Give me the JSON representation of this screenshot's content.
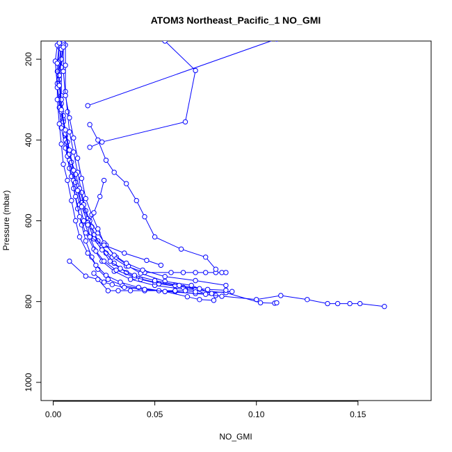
{
  "chart_data": {
    "type": "scatter",
    "title": "ATOM3 Northeast_Pacific_1 NO_GMI",
    "xlabel": "NO_GMI",
    "ylabel": "Pressure (mbar)",
    "xlim": [
      -0.006,
      0.186
    ],
    "ylim": [
      1045,
      155
    ],
    "y_reversed": true,
    "x_ticks": [
      0.0,
      0.05,
      0.1,
      0.15
    ],
    "x_tick_labels": [
      "0.00",
      "0.05",
      "0.10",
      "0.15"
    ],
    "y_ticks": [
      200,
      400,
      600,
      800,
      1000
    ],
    "y_tick_labels": [
      "200",
      "400",
      "600",
      "800",
      "1000"
    ],
    "grid": false,
    "legend": "none",
    "style": {
      "color": "#0000ff",
      "markers": "open-circle",
      "lines": true
    },
    "series": [
      {
        "points": [
          [
            0.004,
            160
          ],
          [
            0.003,
            205
          ],
          [
            0.002,
            260
          ],
          [
            0.003,
            320
          ],
          [
            0.004,
            370
          ],
          [
            0.006,
            420
          ],
          [
            0.008,
            470
          ],
          [
            0.01,
            520
          ],
          [
            0.012,
            570
          ],
          [
            0.014,
            610
          ],
          [
            0.016,
            650
          ],
          [
            0.019,
            690
          ],
          [
            0.022,
            720
          ],
          [
            0.027,
            745
          ],
          [
            0.034,
            760
          ],
          [
            0.045,
            770
          ],
          [
            0.06,
            775
          ],
          [
            0.08,
            785
          ],
          [
            0.1,
            795
          ],
          [
            0.112,
            785
          ],
          [
            0.125,
            795
          ],
          [
            0.135,
            805
          ],
          [
            0.14,
            805
          ],
          [
            0.146,
            805
          ],
          [
            0.151,
            805
          ],
          [
            0.163,
            812
          ]
        ]
      },
      {
        "points": [
          [
            0.005,
            160
          ],
          [
            0.004,
            220
          ],
          [
            0.004,
            290
          ],
          [
            0.005,
            340
          ],
          [
            0.006,
            390
          ],
          [
            0.007,
            440
          ],
          [
            0.009,
            490
          ],
          [
            0.011,
            540
          ],
          [
            0.013,
            590
          ],
          [
            0.016,
            630
          ],
          [
            0.02,
            670
          ],
          [
            0.024,
            700
          ],
          [
            0.03,
            725
          ],
          [
            0.038,
            745
          ],
          [
            0.05,
            760
          ],
          [
            0.065,
            770
          ],
          [
            0.085,
            778
          ],
          [
            0.102,
            803
          ],
          [
            0.109,
            804
          ],
          [
            0.11,
            803
          ]
        ]
      },
      {
        "points": [
          [
            0.003,
            170
          ],
          [
            0.002,
            230
          ],
          [
            0.002,
            300
          ],
          [
            0.003,
            360
          ],
          [
            0.004,
            410
          ],
          [
            0.005,
            460
          ],
          [
            0.007,
            500
          ],
          [
            0.009,
            550
          ],
          [
            0.011,
            600
          ],
          [
            0.013,
            640
          ],
          [
            0.017,
            680
          ],
          [
            0.021,
            710
          ],
          [
            0.026,
            735
          ],
          [
            0.033,
            752
          ],
          [
            0.042,
            765
          ],
          [
            0.055,
            775
          ],
          [
            0.07,
            780
          ],
          [
            0.088,
            775
          ]
        ]
      },
      {
        "points": [
          [
            0.006,
            165
          ],
          [
            0.006,
            215
          ],
          [
            0.006,
            280
          ],
          [
            0.007,
            330
          ],
          [
            0.008,
            380
          ],
          [
            0.01,
            430
          ],
          [
            0.012,
            480
          ],
          [
            0.014,
            530
          ],
          [
            0.016,
            575
          ],
          [
            0.019,
            615
          ],
          [
            0.022,
            650
          ],
          [
            0.026,
            680
          ],
          [
            0.03,
            705
          ],
          [
            0.036,
            728
          ],
          [
            0.043,
            745
          ],
          [
            0.052,
            756
          ],
          [
            0.064,
            765
          ],
          [
            0.076,
            770
          ],
          [
            0.085,
            772
          ]
        ]
      },
      {
        "points": [
          [
            0.005,
            165
          ],
          [
            0.004,
            200
          ],
          [
            0.003,
            250
          ],
          [
            0.004,
            310
          ],
          [
            0.005,
            350
          ],
          [
            0.006,
            400
          ],
          [
            0.008,
            450
          ],
          [
            0.01,
            500
          ],
          [
            0.013,
            560
          ],
          [
            0.015,
            600
          ],
          [
            0.018,
            640
          ],
          [
            0.021,
            675
          ],
          [
            0.025,
            700
          ],
          [
            0.031,
            722
          ],
          [
            0.04,
            740
          ],
          [
            0.05,
            752
          ],
          [
            0.06,
            760
          ],
          [
            0.07,
            770
          ],
          [
            0.075,
            782
          ],
          [
            0.083,
            787
          ]
        ]
      },
      {
        "points": [
          [
            0.004,
            175
          ],
          [
            0.003,
            240
          ],
          [
            0.004,
            300
          ],
          [
            0.005,
            355
          ],
          [
            0.007,
            405
          ],
          [
            0.009,
            455
          ],
          [
            0.011,
            505
          ],
          [
            0.014,
            555
          ],
          [
            0.017,
            595
          ],
          [
            0.02,
            635
          ],
          [
            0.024,
            665
          ],
          [
            0.029,
            690
          ],
          [
            0.036,
            712
          ],
          [
            0.045,
            728
          ],
          [
            0.058,
            728
          ],
          [
            0.064,
            728
          ],
          [
            0.07,
            728
          ],
          [
            0.075,
            728
          ],
          [
            0.08,
            728
          ],
          [
            0.083,
            728
          ],
          [
            0.085,
            728
          ]
        ]
      },
      {
        "points": [
          [
            0.002,
            165
          ],
          [
            0.001,
            205
          ],
          [
            0.002,
            270
          ],
          [
            0.004,
            330
          ],
          [
            0.006,
            385
          ],
          [
            0.008,
            435
          ],
          [
            0.011,
            485
          ],
          [
            0.013,
            520
          ],
          [
            0.015,
            560
          ],
          [
            0.018,
            600
          ],
          [
            0.022,
            630
          ],
          [
            0.026,
            660
          ],
          [
            0.031,
            690
          ],
          [
            0.037,
            712
          ],
          [
            0.043,
            730
          ],
          [
            0.055,
            750
          ],
          [
            0.068,
            760
          ],
          [
            0.078,
            780
          ]
        ]
      },
      {
        "points": [
          [
            0.003,
            160
          ],
          [
            0.002,
            210
          ],
          [
            0.003,
            265
          ],
          [
            0.004,
            325
          ],
          [
            0.006,
            375
          ],
          [
            0.008,
            425
          ],
          [
            0.01,
            475
          ],
          [
            0.012,
            525
          ],
          [
            0.014,
            565
          ],
          [
            0.017,
            605
          ],
          [
            0.02,
            645
          ],
          [
            0.024,
            672
          ],
          [
            0.028,
            700
          ],
          [
            0.033,
            718
          ],
          [
            0.04,
            735
          ],
          [
            0.05,
            748
          ],
          [
            0.062,
            760
          ],
          [
            0.072,
            768
          ]
        ]
      },
      {
        "points": [
          [
            0.005,
            170
          ],
          [
            0.005,
            230
          ],
          [
            0.006,
            290
          ],
          [
            0.008,
            345
          ],
          [
            0.01,
            395
          ],
          [
            0.012,
            445
          ],
          [
            0.014,
            495
          ],
          [
            0.016,
            545
          ],
          [
            0.019,
            585
          ],
          [
            0.022,
            620
          ],
          [
            0.025,
            655
          ],
          [
            0.03,
            685
          ],
          [
            0.036,
            705
          ],
          [
            0.044,
            722
          ],
          [
            0.055,
            738
          ],
          [
            0.07,
            748
          ],
          [
            0.085,
            760
          ]
        ]
      },
      {
        "points": [
          [
            0.017,
            315
          ],
          [
            0.11,
            150
          ]
        ]
      },
      {
        "points": [
          [
            0.055,
            155
          ],
          [
            0.07,
            228
          ],
          [
            0.065,
            355
          ],
          [
            0.024,
            405
          ],
          [
            0.018,
            418
          ]
        ]
      },
      {
        "points": [
          [
            0.018,
            362
          ],
          [
            0.022,
            400
          ],
          [
            0.026,
            450
          ],
          [
            0.03,
            480
          ],
          [
            0.036,
            508
          ],
          [
            0.041,
            550
          ],
          [
            0.045,
            590
          ],
          [
            0.05,
            640
          ],
          [
            0.063,
            670
          ],
          [
            0.075,
            690
          ],
          [
            0.08,
            720
          ]
        ]
      },
      {
        "points": [
          [
            0.025,
            500
          ],
          [
            0.023,
            540
          ],
          [
            0.02,
            580
          ],
          [
            0.017,
            610
          ],
          [
            0.018,
            640
          ],
          [
            0.025,
            660
          ],
          [
            0.035,
            680
          ],
          [
            0.046,
            698
          ],
          [
            0.053,
            710
          ]
        ]
      },
      {
        "points": [
          [
            0.008,
            700
          ],
          [
            0.016,
            737
          ],
          [
            0.022,
            745
          ],
          [
            0.027,
            773
          ],
          [
            0.032,
            773
          ],
          [
            0.038,
            773
          ],
          [
            0.045,
            773
          ],
          [
            0.052,
            773
          ],
          [
            0.06,
            773
          ],
          [
            0.065,
            773
          ],
          [
            0.07,
            776
          ]
        ]
      },
      {
        "points": [
          [
            0.02,
            730
          ],
          [
            0.025,
            752
          ],
          [
            0.029,
            758
          ],
          [
            0.035,
            765
          ],
          [
            0.045,
            770
          ],
          [
            0.055,
            775
          ],
          [
            0.066,
            788
          ],
          [
            0.072,
            795
          ],
          [
            0.079,
            797
          ]
        ]
      }
    ]
  }
}
